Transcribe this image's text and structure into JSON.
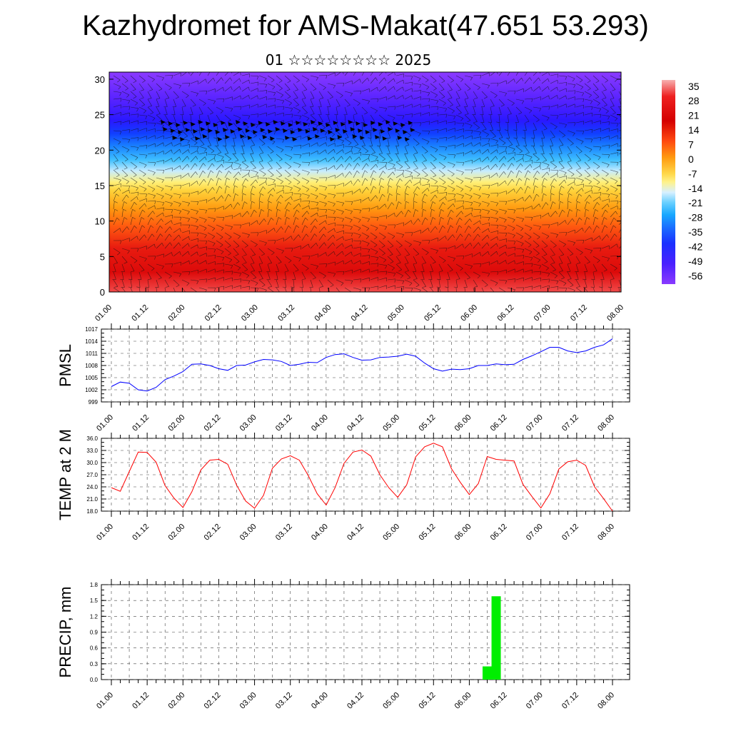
{
  "header": {
    "title": "Kazhydromet for AMS-Makat(47.651 53.293)",
    "subtitle": "01 ☆☆☆☆☆☆☆☆ 2025"
  },
  "chart_data": [
    {
      "type": "heatmap",
      "title": "",
      "xlabel": "",
      "ylabel": "",
      "x_ticks": [
        "01.00",
        "01.12",
        "02.00",
        "02.12",
        "03.00",
        "03.12",
        "04.00",
        "04.12",
        "05.00",
        "05.12",
        "06.00",
        "06.12",
        "07.00",
        "07.12",
        "08.00"
      ],
      "y_ticks": [
        "0",
        "5",
        "10",
        "15",
        "20",
        "25",
        "30"
      ],
      "ylim": [
        0,
        31
      ],
      "colorbar_labels": [
        "35",
        "28",
        "21",
        "14",
        "7",
        "0",
        "-7",
        "-14",
        "-21",
        "-28",
        "-35",
        "-42",
        "-49",
        "-56"
      ],
      "colorbar_range": [
        -60,
        38
      ],
      "colors": {
        "warm": "#d40000",
        "mid": "#ffe060",
        "cold": "#6a22ff"
      },
      "overlay": "wind barbs",
      "temperature_profile": [
        {
          "height": 0,
          "value": 32
        },
        {
          "height": 5,
          "value": 24
        },
        {
          "height": 10,
          "value": 14
        },
        {
          "height": 14,
          "value": 2
        },
        {
          "height": 17,
          "value": -8
        },
        {
          "height": 19,
          "value": -20
        },
        {
          "height": 21,
          "value": -32
        },
        {
          "height": 23,
          "value": -45
        },
        {
          "height": 25,
          "value": -54
        },
        {
          "height": 28,
          "value": -55
        },
        {
          "height": 31,
          "value": -50
        }
      ]
    },
    {
      "type": "line",
      "title": "",
      "ylabel": "PMSL",
      "ylim": [
        999,
        1017
      ],
      "y_ticks": [
        "1017",
        "1014",
        "1011",
        "1008",
        "1005",
        "1002",
        "999"
      ],
      "x_ticks": [
        "01.00",
        "01.12",
        "02.00",
        "02.12",
        "03.00",
        "03.12",
        "04.00",
        "04.12",
        "05.00",
        "05.12",
        "06.00",
        "06.12",
        "07.00",
        "07.12",
        "08.00"
      ],
      "color": "#0000ff",
      "series": [
        {
          "values": [
            1002.8,
            1003.9,
            1003.6,
            1002.0,
            1001.7,
            1002.6,
            1004.5,
            1005.4,
            1006.5,
            1008.3,
            1008.4,
            1008.0,
            1007.2,
            1006.8,
            1008.0,
            1008.1,
            1008.9,
            1009.5,
            1009.4,
            1009.0,
            1008.0,
            1008.3,
            1008.8,
            1008.7,
            1010.0,
            1010.7,
            1010.9,
            1010.0,
            1009.3,
            1009.4,
            1010.0,
            1010.1,
            1010.3,
            1010.8,
            1010.3,
            1008.6,
            1007.2,
            1006.6,
            1007.1,
            1007.0,
            1007.2,
            1008.0,
            1008.0,
            1008.4,
            1008.2,
            1008.3,
            1009.5,
            1010.4,
            1011.4,
            1012.5,
            1012.5,
            1011.6,
            1011.2,
            1011.6,
            1012.5,
            1013.1,
            1014.6
          ]
        }
      ]
    },
    {
      "type": "line",
      "title": "",
      "ylabel": "TEMP at 2 M",
      "ylim": [
        18,
        36
      ],
      "y_ticks": [
        "36.0",
        "33.0",
        "30.0",
        "27.0",
        "24.0",
        "21.0",
        "18.0"
      ],
      "x_ticks": [
        "01.00",
        "01.12",
        "02.00",
        "02.12",
        "03.00",
        "03.12",
        "04.00",
        "04.12",
        "05.00",
        "05.12",
        "06.00",
        "06.12",
        "07.00",
        "07.12",
        "08.00"
      ],
      "color": "#ff0000",
      "series": [
        {
          "values": [
            23.8,
            22.9,
            27.8,
            32.6,
            32.5,
            30.1,
            24.3,
            21.2,
            18.9,
            22.8,
            28.2,
            30.6,
            30.8,
            29.6,
            24.4,
            20.5,
            18.7,
            21.9,
            28.6,
            30.9,
            31.7,
            30.6,
            26.8,
            22.3,
            19.5,
            23.8,
            29.8,
            32.6,
            33.1,
            31.6,
            27.0,
            23.8,
            21.4,
            24.5,
            31.4,
            33.9,
            34.8,
            33.9,
            28.5,
            25.1,
            22.1,
            24.8,
            31.5,
            30.8,
            30.6,
            30.4,
            24.6,
            21.6,
            18.8,
            22.3,
            28.4,
            30.2,
            30.6,
            29.3,
            24.0,
            21.1,
            18.0
          ]
        }
      ]
    },
    {
      "type": "bar",
      "title": "",
      "ylabel": "PRECIP, mm",
      "ylim": [
        0,
        1.8
      ],
      "y_ticks": [
        "1.8",
        "1.5",
        "1.2",
        "0.9",
        "0.6",
        "0.3",
        "0.0"
      ],
      "x_ticks": [
        "01.00",
        "01.12",
        "02.00",
        "02.12",
        "03.00",
        "03.12",
        "04.00",
        "04.12",
        "05.00",
        "05.12",
        "06.00",
        "06.12",
        "07.00",
        "07.12",
        "08.00"
      ],
      "color": "#00ee00",
      "bars": [
        {
          "x": "06.06",
          "value": 0.25
        },
        {
          "x": "06.09",
          "value": 1.58
        }
      ]
    }
  ]
}
